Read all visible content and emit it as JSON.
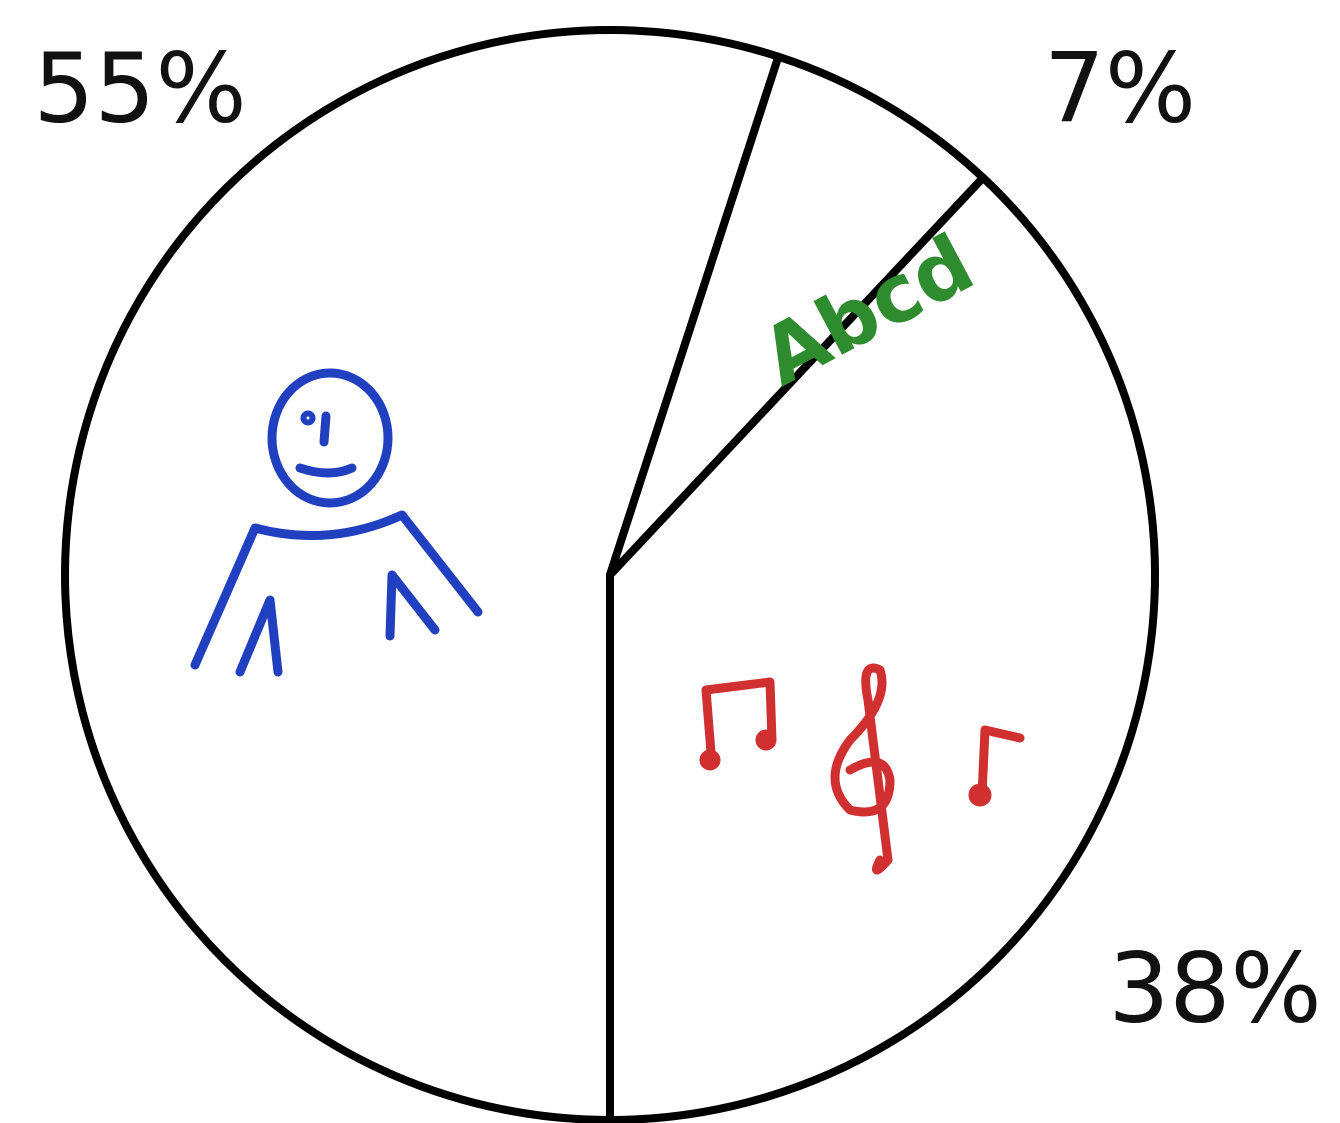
{
  "chart_data": {
    "type": "pie",
    "values": [
      55,
      7,
      38
    ],
    "value_labels": [
      "55%",
      "7%",
      "38%"
    ],
    "annotation": "Abcd",
    "annotation_color": "#2e8b2e",
    "fill": "#ffffff",
    "edge_color": "#000000"
  }
}
